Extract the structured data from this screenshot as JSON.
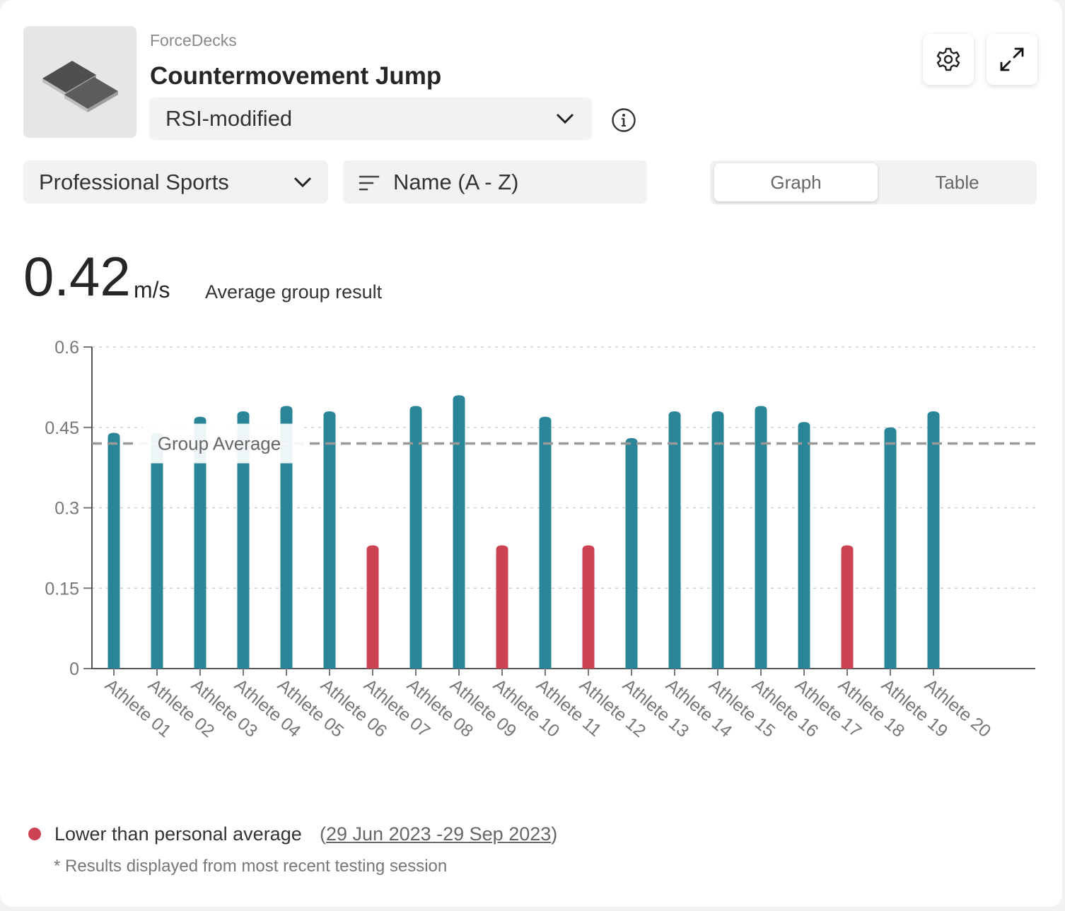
{
  "header": {
    "app_name": "ForceDecks",
    "test_name": "Countermovement Jump",
    "metric": "RSI-modified"
  },
  "icons": {
    "thumbnail": "force-plates-icon",
    "info": "info-icon",
    "settings": "gear-icon",
    "expand": "expand-icon",
    "dropdown": "chevron-down-icon",
    "sort": "sort-icon"
  },
  "filters": {
    "group": "Professional Sports",
    "sort": "Name (A - Z)"
  },
  "view_toggle": {
    "graph": "Graph",
    "table": "Table",
    "selected": "Graph"
  },
  "summary": {
    "value": "0.42",
    "unit": "m/s",
    "label": "Average group result"
  },
  "chart_data": {
    "type": "bar",
    "title": "",
    "xlabel": "",
    "ylabel": "",
    "ylim": [
      0,
      0.6
    ],
    "yticks": [
      "0",
      "0.15",
      "0.3",
      "0.45",
      "0.6"
    ],
    "grid": true,
    "categories": [
      "Athlete 01",
      "Athlete 02",
      "Athlete 03",
      "Athlete 04",
      "Athlete 05",
      "Athlete 06",
      "Athlete 07",
      "Athlete 08",
      "Athlete 09",
      "Athlete 10",
      "Athlete 11",
      "Athlete 12",
      "Athlete 13",
      "Athlete 14",
      "Athlete 15",
      "Athlete 16",
      "Athlete 17",
      "Athlete 18",
      "Athlete 19",
      "Athlete 20"
    ],
    "values": [
      0.44,
      0.44,
      0.47,
      0.48,
      0.49,
      0.48,
      0.23,
      0.49,
      0.51,
      0.23,
      0.47,
      0.23,
      0.43,
      0.48,
      0.48,
      0.49,
      0.46,
      0.23,
      0.45,
      0.48
    ],
    "below_personal_average": [
      false,
      false,
      false,
      false,
      false,
      false,
      true,
      false,
      false,
      true,
      false,
      true,
      false,
      false,
      false,
      false,
      false,
      true,
      false,
      false
    ],
    "reference_line": {
      "label": "Group Average",
      "value": 0.42
    },
    "colors": {
      "normal": "#2b8599",
      "below": "#cc4454",
      "reference": "#999999"
    }
  },
  "legend": {
    "label": "Lower than personal average",
    "date_range_open": "(",
    "date_range": "29 Jun 2023 -29 Sep 2023",
    "date_range_close": ")",
    "color": "#cc4454"
  },
  "footnote": "* Results displayed from most recent testing session"
}
